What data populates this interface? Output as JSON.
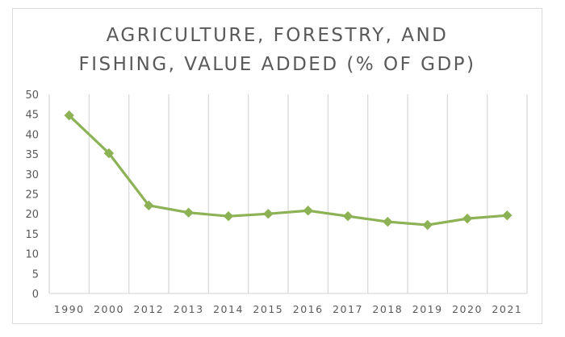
{
  "chart_data": {
    "type": "line",
    "title": "AGRICULTURE, FORESTRY, AND FISHING, VALUE ADDED (% OF GDP)",
    "title_lines": [
      "AGRICULTURE, FORESTRY, AND",
      "FISHING, VALUE ADDED (% OF GDP)"
    ],
    "xlabel": "",
    "ylabel": "",
    "categories": [
      "1990",
      "2000",
      "2012",
      "2013",
      "2014",
      "2015",
      "2016",
      "2017",
      "2018",
      "2019",
      "2020",
      "2021"
    ],
    "series": [
      {
        "name": "Agriculture, forestry, and fishing, value added (% of GDP)",
        "color": "#8db255",
        "marker": "diamond",
        "values": [
          44.7,
          35.2,
          22.1,
          20.3,
          19.4,
          20.0,
          20.8,
          19.4,
          18.0,
          17.2,
          18.8,
          19.6
        ]
      }
    ],
    "ylim": [
      0,
      50
    ],
    "yticks": [
      0,
      5,
      10,
      15,
      20,
      25,
      30,
      35,
      40,
      45,
      50
    ],
    "grid": "vertical",
    "legend": "none"
  },
  "colors": {
    "line": "#8db255",
    "grid": "#d9d9d9",
    "text": "#595959",
    "border": "#d9d9d9"
  }
}
